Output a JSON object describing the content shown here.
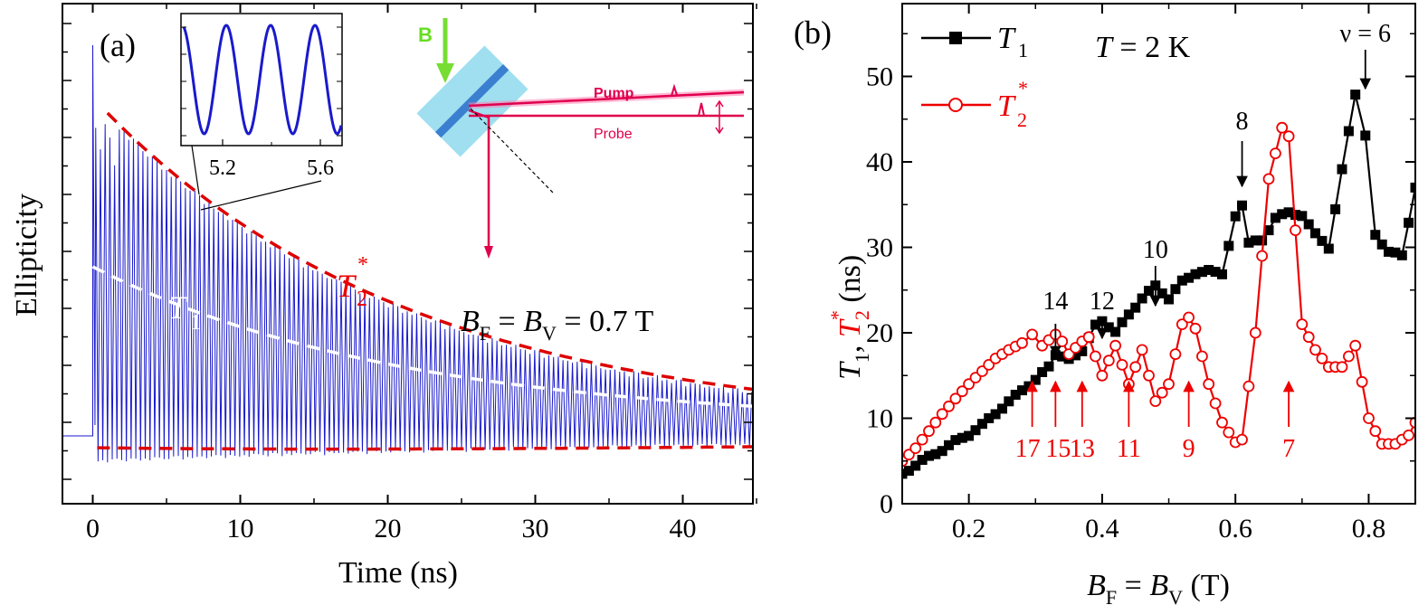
{
  "panel_a": {
    "label": "(a)",
    "xlabel": "Time (ns)",
    "ylabel": "Ellipticity",
    "annotation": {
      "B": "B",
      "F": "F",
      "eq": " = ",
      "V": "V",
      "value": " = 0.7 T"
    },
    "t1_label": {
      "main": "T",
      "sub": "1"
    },
    "t2_label": {
      "main": "T",
      "sub": "2",
      "sup": "*"
    },
    "inset": {
      "xticks": [
        "5.2",
        "5.6"
      ]
    },
    "schematic": {
      "field": "B",
      "pump": "Pump",
      "probe": "Probe"
    }
  },
  "panel_b": {
    "label": "(b)",
    "temperature": {
      "var": "T",
      "value": " = 2 K"
    },
    "legend": [
      {
        "main": "T",
        "sub": "1",
        "sup": ""
      },
      {
        "main": "T",
        "sub": "2",
        "sup": "*"
      }
    ],
    "ylabel_parts": {
      "t1": "T",
      "t1sub": "1",
      "sep": ", ",
      "t2": "T",
      "t2sub": "2",
      "t2sup": "*",
      "unit": " (ns)"
    },
    "xlabel_parts": {
      "B1": "B",
      "F": "F",
      "eq": " = ",
      "B2": "B",
      "V": "V",
      "unit": " (T)"
    }
  },
  "chart_data": [
    {
      "type": "line",
      "panel": "(a)",
      "xlabel": "Time (ns)",
      "ylabel": "Ellipticity",
      "xlim": [
        -2,
        45
      ],
      "xticks": [
        0,
        10,
        20,
        30,
        40
      ],
      "series": [
        {
          "name": "T2*",
          "color": "#dd0000",
          "style": "dashed envelope",
          "tau_ns": 21
        },
        {
          "name": "T1",
          "color": "#ffffff",
          "style": "dashed",
          "tau_ns": 21
        },
        {
          "color": "#0000cc",
          "style": "oscillating signal"
        }
      ]
    },
    {
      "type": "line",
      "panel": "(b)",
      "xlabel": "BF = BV (T)",
      "ylabel": "T1, T2* (ns)",
      "xlim": [
        0.1,
        0.87
      ],
      "ylim": [
        0,
        57
      ],
      "xticks": [
        0.2,
        0.4,
        0.6,
        0.8
      ],
      "yticks": [
        0,
        10,
        20,
        30,
        40,
        50
      ],
      "series": [
        {
          "name": "T1",
          "color": "#000000",
          "marker": "filled-square",
          "x": [
            0.1,
            0.12,
            0.14,
            0.16,
            0.18,
            0.2,
            0.22,
            0.24,
            0.26,
            0.28,
            0.3,
            0.32,
            0.33,
            0.35,
            0.37,
            0.39,
            0.4,
            0.42,
            0.44,
            0.46,
            0.48,
            0.5,
            0.52,
            0.54,
            0.56,
            0.58,
            0.6,
            0.61,
            0.62,
            0.64,
            0.66,
            0.68,
            0.7,
            0.72,
            0.74,
            0.76,
            0.78,
            0.795,
            0.81,
            0.83,
            0.85,
            0.87
          ],
          "y": [
            3.5,
            4.5,
            5.5,
            6.3,
            7.3,
            8.1,
            9.2,
            10.6,
            11.9,
            13.3,
            14.5,
            16.0,
            17.5,
            16.8,
            18.0,
            20.8,
            21.5,
            20.0,
            22.2,
            24.0,
            25.5,
            24.0,
            26.0,
            27.0,
            27.2,
            27.0,
            33.5,
            35.0,
            30.5,
            30.8,
            33.5,
            34.0,
            33.8,
            31.5,
            30.0,
            39.0,
            48.0,
            43.0,
            31.5,
            29.5,
            29.0,
            37.0
          ]
        },
        {
          "name": "T2*",
          "color": "#ee0000",
          "marker": "open-circle",
          "x": [
            0.1,
            0.12,
            0.14,
            0.16,
            0.18,
            0.2,
            0.22,
            0.24,
            0.26,
            0.28,
            0.295,
            0.31,
            0.33,
            0.34,
            0.35,
            0.37,
            0.38,
            0.4,
            0.42,
            0.44,
            0.46,
            0.48,
            0.5,
            0.52,
            0.53,
            0.54,
            0.56,
            0.58,
            0.6,
            0.61,
            0.63,
            0.65,
            0.67,
            0.68,
            0.7,
            0.72,
            0.74,
            0.76,
            0.78,
            0.8,
            0.82,
            0.84,
            0.86,
            0.87
          ],
          "y": [
            5.0,
            6.5,
            8.5,
            10.5,
            12.3,
            14.0,
            15.5,
            17.0,
            18.0,
            18.8,
            19.8,
            18.5,
            19.8,
            19.0,
            17.5,
            19.0,
            19.5,
            15.0,
            18.5,
            14.0,
            18.0,
            12.0,
            14.0,
            21.0,
            21.8,
            20.5,
            14.0,
            9.5,
            7.2,
            7.5,
            20.0,
            38.0,
            44.0,
            43.0,
            21.0,
            18.0,
            16.0,
            16.0,
            18.5,
            10.0,
            7.0,
            7.0,
            8.0,
            9.5
          ]
        }
      ],
      "annotations": {
        "black_arrows": [
          {
            "label": "14",
            "x": 0.33
          },
          {
            "label": "12",
            "x": 0.4
          },
          {
            "label": "10",
            "x": 0.48
          },
          {
            "label": "8",
            "x": 0.61
          },
          {
            "label": "ν = 6",
            "x": 0.795
          }
        ],
        "red_arrows": [
          {
            "label": "17",
            "x": 0.295
          },
          {
            "label": "15",
            "x": 0.33
          },
          {
            "label": "13",
            "x": 0.37
          },
          {
            "label": "11",
            "x": 0.44
          },
          {
            "label": "9",
            "x": 0.53
          },
          {
            "label": "7",
            "x": 0.68
          }
        ]
      }
    }
  ]
}
